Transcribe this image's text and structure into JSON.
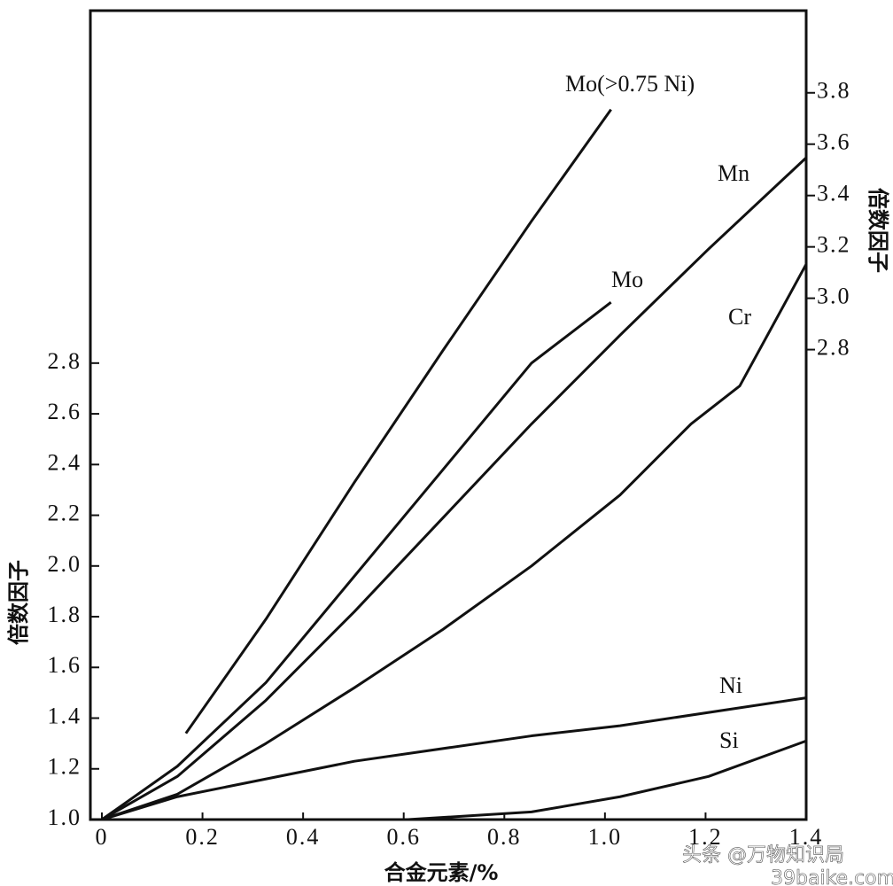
{
  "chart_data": {
    "type": "line",
    "xlabel": "合金元素/%",
    "ylabel": "倍数因子",
    "y2label": "倍数因子",
    "xlim": [
      0,
      1.4
    ],
    "xticks": [
      0,
      0.2,
      0.4,
      0.6,
      0.8,
      {
        "value": 1,
        "label": "1.0"
      },
      1.2,
      1.4
    ],
    "ylim": [
      1,
      4.19
    ],
    "yticks": [
      {
        "value": 1,
        "label": "1.0"
      },
      1.2,
      1.4,
      1.6,
      1.8,
      {
        "value": 2,
        "label": "2.0"
      },
      2.2,
      2.4,
      2.6,
      2.8
    ],
    "y2lim": [
      0.97,
      4.12
    ],
    "y2ticks": [
      2.8,
      {
        "value": 3,
        "label": "3.0"
      },
      3.2,
      3.4,
      3.6,
      3.8
    ],
    "color": "#111",
    "series": [
      {
        "name": "Mo(>0.75 Ni)",
        "x": [
          0.167,
          0.326,
          0.502,
          0.678,
          0.854,
          1.012
        ],
        "values": [
          1.34,
          1.79,
          2.33,
          2.85,
          3.36,
          3.8
        ]
      },
      {
        "name": "Mo",
        "x": [
          0,
          0.15,
          0.326,
          0.502,
          0.678,
          0.854,
          1.012
        ],
        "values": [
          1,
          1.21,
          1.54,
          1.96,
          2.38,
          2.8,
          3.04
        ]
      },
      {
        "name": "Mn",
        "x": [
          0,
          0.15,
          0.326,
          0.502,
          0.678,
          0.854,
          1.03,
          1.206,
          1.4
        ],
        "values": [
          1,
          1.17,
          1.47,
          1.82,
          2.19,
          2.56,
          2.91,
          3.25,
          3.61
        ]
      },
      {
        "name": "Cr",
        "x": [
          0,
          0.15,
          0.326,
          0.502,
          0.678,
          0.854,
          1.03,
          1.171,
          1.268,
          1.4
        ],
        "values": [
          1,
          1.1,
          1.3,
          1.52,
          1.75,
          2,
          2.28,
          2.56,
          2.71,
          3.19
        ]
      },
      {
        "name": "Ni",
        "x": [
          0,
          0.15,
          0.502,
          0.854,
          1.03,
          1.4
        ],
        "values": [
          1,
          1.09,
          1.23,
          1.33,
          1.37,
          1.48
        ]
      },
      {
        "name": "Si",
        "x": [
          0,
          0.608,
          0.854,
          1.03,
          1.206,
          1.4
        ],
        "values": [
          1,
          1,
          1.03,
          1.09,
          1.17,
          1.31
        ]
      }
    ]
  },
  "watermark": {
    "line1": "头条 @万物知识局",
    "line2": "39baike.com"
  }
}
